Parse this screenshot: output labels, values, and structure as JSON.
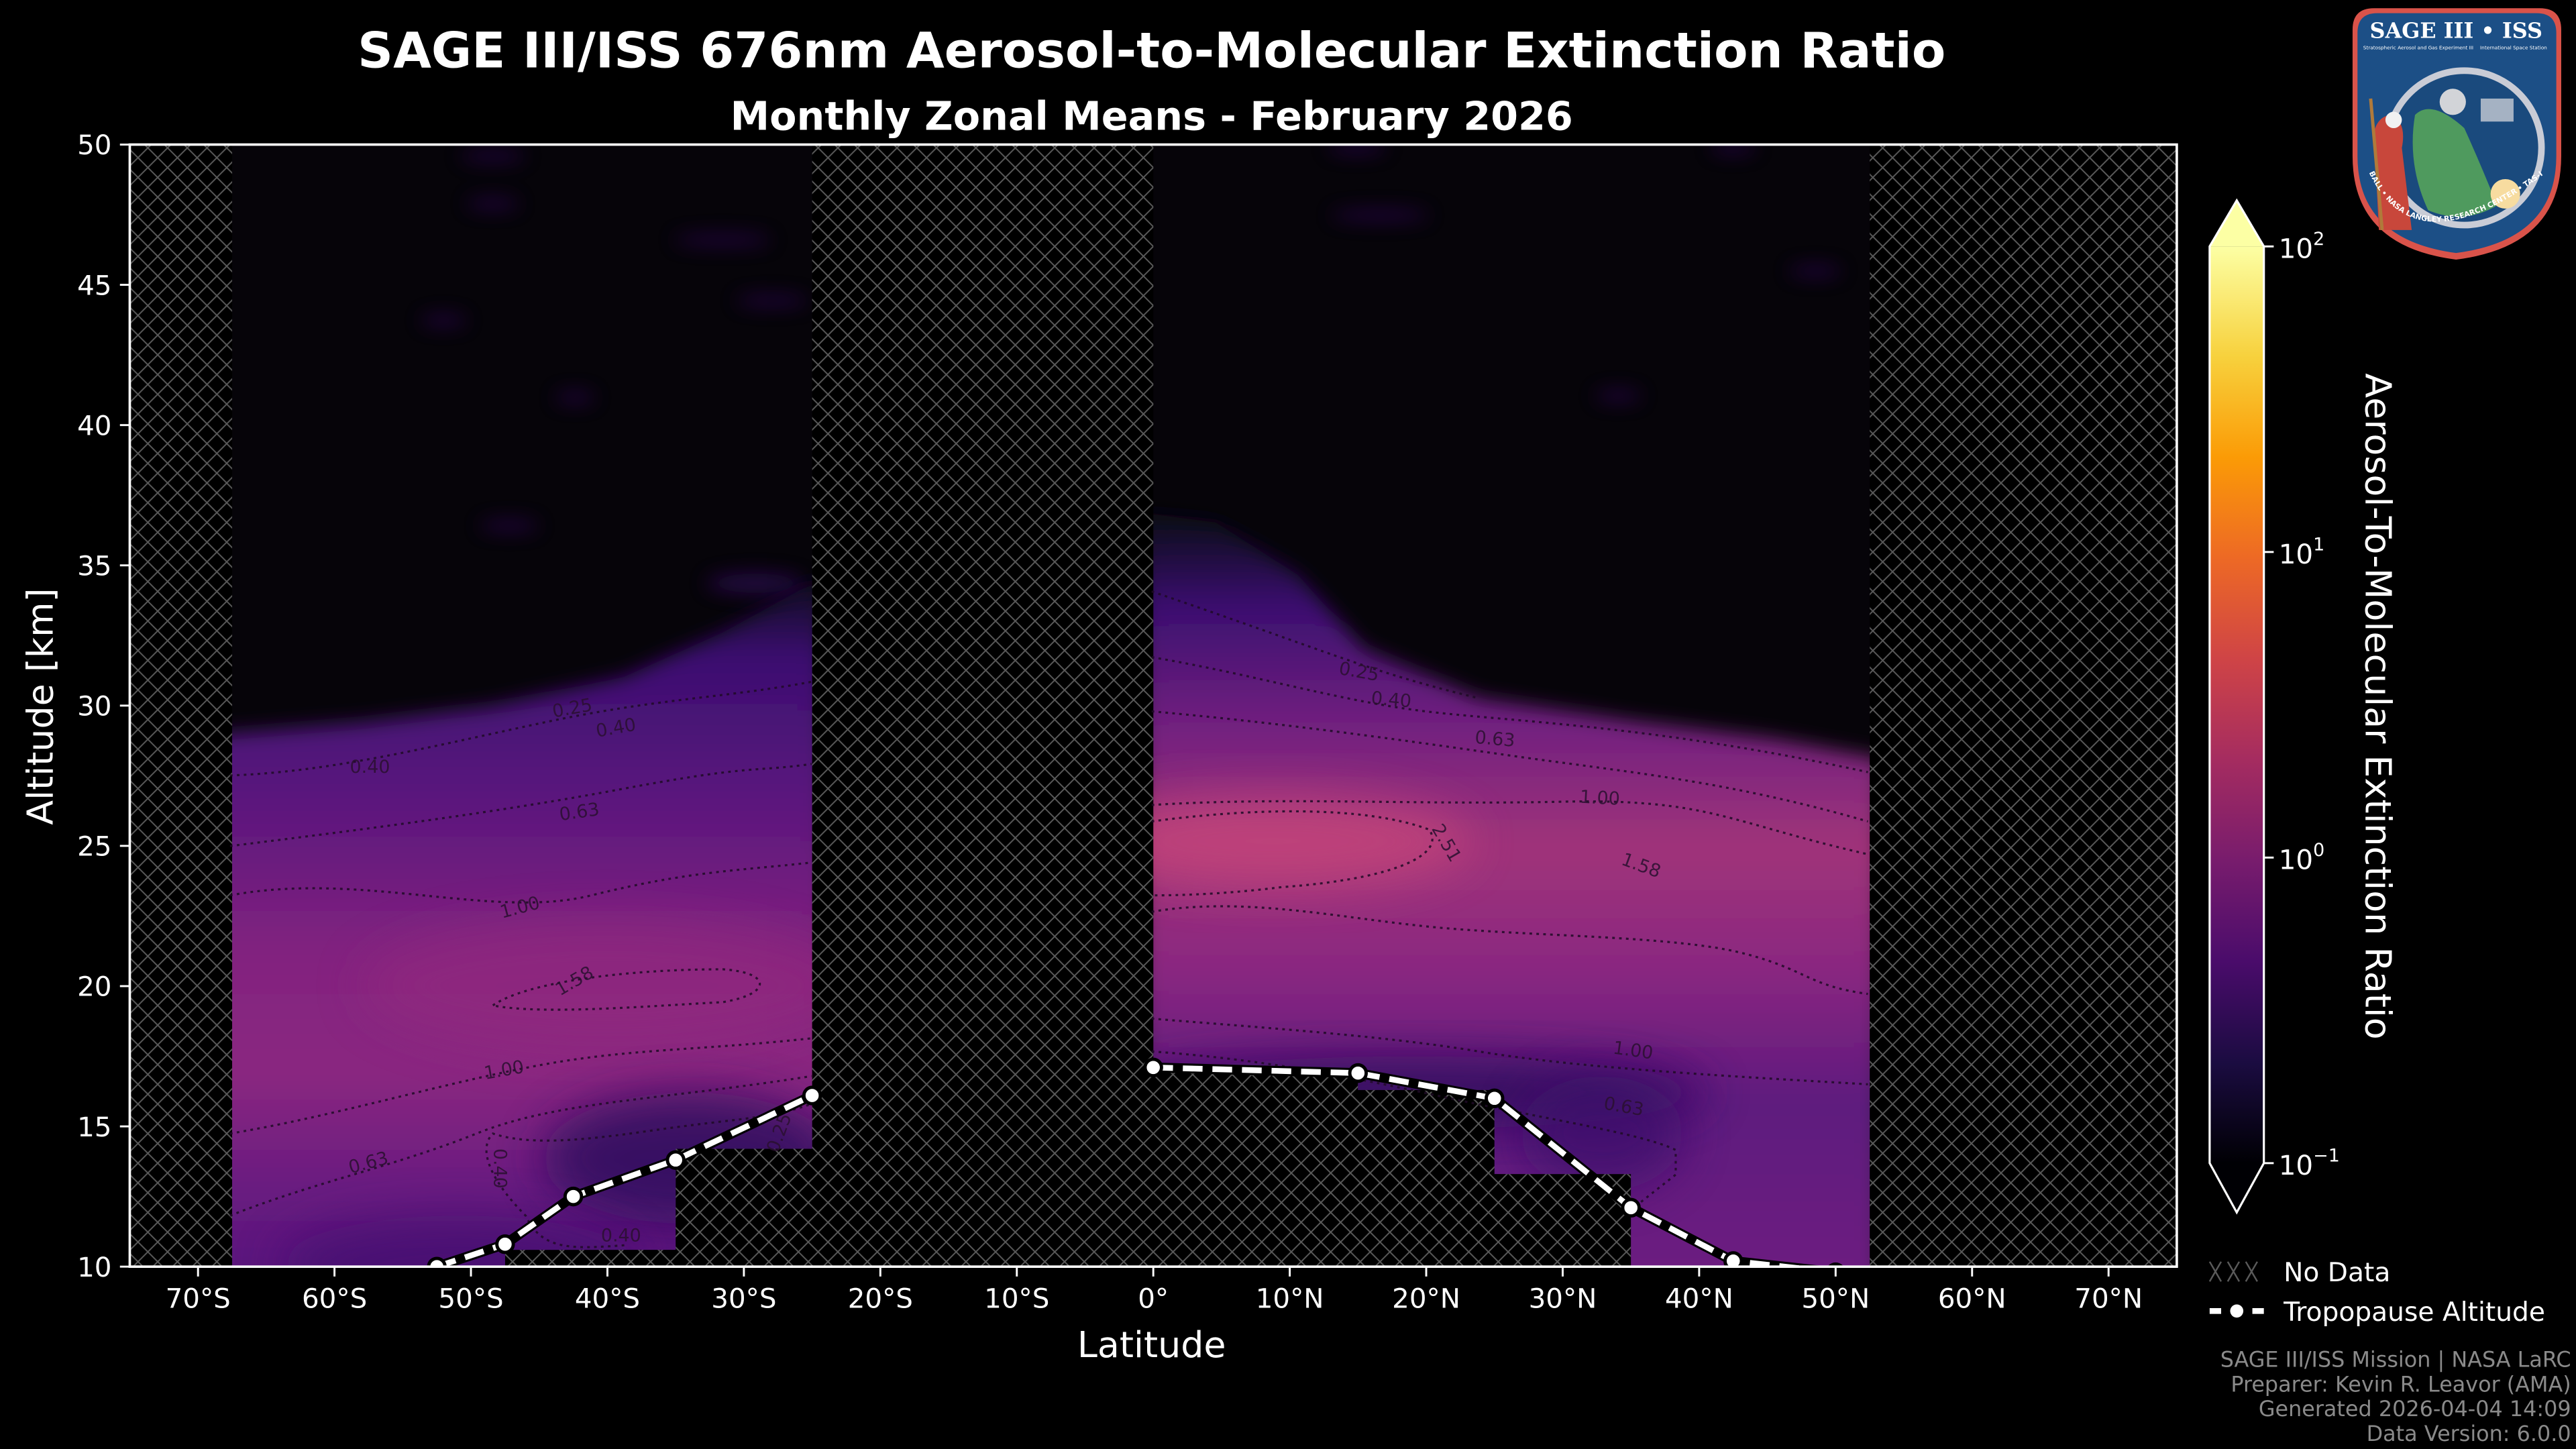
{
  "title": "SAGE III/ISS 676nm Aerosol-to-Molecular Extinction Ratio",
  "subtitle": "Monthly Zonal Means - February 2026",
  "logo": {
    "title": "SAGE III • ISS",
    "subtitle_left": "Stratospheric Aerosol and Gas Experiment III",
    "subtitle_right": "International Space Station",
    "ring_text": "BALL • NASA LANGLEY RESEARCH CENTER • TAS-I • ESA"
  },
  "chart_data": {
    "type": "heatmap",
    "xlabel": "Latitude",
    "ylabel": "Altitude [km]",
    "xlim": [
      -75,
      75
    ],
    "ylim": [
      10,
      50
    ],
    "x_ticks": [
      {
        "value": -70,
        "label": "70°S"
      },
      {
        "value": -60,
        "label": "60°S"
      },
      {
        "value": -50,
        "label": "50°S"
      },
      {
        "value": -40,
        "label": "40°S"
      },
      {
        "value": -30,
        "label": "30°S"
      },
      {
        "value": -20,
        "label": "20°S"
      },
      {
        "value": -10,
        "label": "10°S"
      },
      {
        "value": 0,
        "label": "0°"
      },
      {
        "value": 10,
        "label": "10°N"
      },
      {
        "value": 20,
        "label": "20°N"
      },
      {
        "value": 30,
        "label": "30°N"
      },
      {
        "value": 40,
        "label": "40°N"
      },
      {
        "value": 50,
        "label": "50°N"
      },
      {
        "value": 60,
        "label": "60°N"
      },
      {
        "value": 70,
        "label": "70°N"
      }
    ],
    "y_ticks": [
      {
        "value": 10,
        "label": "10"
      },
      {
        "value": 15,
        "label": "15"
      },
      {
        "value": 20,
        "label": "20"
      },
      {
        "value": 25,
        "label": "25"
      },
      {
        "value": 30,
        "label": "30"
      },
      {
        "value": 35,
        "label": "35"
      },
      {
        "value": 40,
        "label": "40"
      },
      {
        "value": 45,
        "label": "45"
      },
      {
        "value": 50,
        "label": "50"
      }
    ],
    "colorbar": {
      "label": "Aerosol-To-Molecular Extinction Ratio",
      "colormap": "inferno",
      "scale": "log",
      "range": [
        0.1,
        100
      ],
      "extend": "both",
      "ticks": [
        {
          "value": 0.1,
          "base": "10",
          "exp": "−1"
        },
        {
          "value": 1,
          "base": "10",
          "exp": "0"
        },
        {
          "value": 10,
          "base": "10",
          "exp": "1"
        },
        {
          "value": 100,
          "base": "10",
          "exp": "2"
        }
      ]
    },
    "data_coverage": [
      {
        "lat": [
          -67.5,
          -47.5
        ],
        "min_alt": 10
      },
      {
        "lat": [
          -47.5,
          -35
        ],
        "min_alt": 10.6
      },
      {
        "lat": [
          -35,
          -25
        ],
        "min_alt": 14.2
      },
      {
        "lat": [
          0,
          15
        ],
        "min_alt": 17.0
      },
      {
        "lat": [
          15,
          25
        ],
        "min_alt": 16.3
      },
      {
        "lat": [
          25,
          35
        ],
        "min_alt": 13.3
      },
      {
        "lat": [
          35,
          52.5
        ],
        "min_alt": 10
      }
    ],
    "features": {
      "south_max": {
        "lat": -43,
        "alt": 19.5,
        "ratio": 1.7
      },
      "north_max": {
        "lat": 8,
        "alt": 24.5,
        "ratio": 2.8
      },
      "aerosol_layer_top_km": {
        "south": "29-35",
        "north": "28-36"
      }
    },
    "contour_levels": [
      0.25,
      0.4,
      0.63,
      1.0,
      1.58,
      2.51
    ],
    "contour_labels": [
      {
        "text": "0.25",
        "lat": -42.5,
        "alt": 29.7,
        "rot": -10
      },
      {
        "text": "0.40",
        "lat": -39.3,
        "alt": 29.0,
        "rot": -10
      },
      {
        "text": "0.40",
        "lat": -57.4,
        "alt": 27.6,
        "rot": 0
      },
      {
        "text": "0.63",
        "lat": -42.0,
        "alt": 26.0,
        "rot": -8
      },
      {
        "text": "1.00",
        "lat": -46.3,
        "alt": 22.6,
        "rot": -15
      },
      {
        "text": "1.58",
        "lat": -42.2,
        "alt": 20.0,
        "rot": -30
      },
      {
        "text": "1.00",
        "lat": -47.5,
        "alt": 16.8,
        "rot": -10
      },
      {
        "text": "0.63",
        "lat": -57.4,
        "alt": 13.5,
        "rot": -15
      },
      {
        "text": "0.40",
        "lat": -48.3,
        "alt": 13.5,
        "rot": 90
      },
      {
        "text": "0.40",
        "lat": -39.0,
        "alt": 10.9,
        "rot": 0
      },
      {
        "text": "0.25",
        "lat": -27.0,
        "alt": 14.7,
        "rot": -70
      },
      {
        "text": "0.25",
        "lat": 15.0,
        "alt": 31.0,
        "rot": 10
      },
      {
        "text": "0.40",
        "lat": 17.4,
        "alt": 30.0,
        "rot": 5
      },
      {
        "text": "0.63",
        "lat": 25.0,
        "alt": 28.6,
        "rot": 5
      },
      {
        "text": "1.00",
        "lat": 32.7,
        "alt": 26.5,
        "rot": 3
      },
      {
        "text": "2.51",
        "lat": 21.1,
        "alt": 25.0,
        "rot": 60
      },
      {
        "text": "1.58",
        "lat": 35.6,
        "alt": 24.1,
        "rot": 20
      },
      {
        "text": "1.00",
        "lat": 35.1,
        "alt": 17.5,
        "rot": 8
      },
      {
        "text": "0.63",
        "lat": 34.4,
        "alt": 15.5,
        "rot": 10
      }
    ],
    "tropopause": {
      "name": "Tropopause Altitude",
      "segments": [
        [
          {
            "lat": -52.5,
            "alt": 10.0
          },
          {
            "lat": -47.5,
            "alt": 10.8
          },
          {
            "lat": -42.5,
            "alt": 12.5
          },
          {
            "lat": -35,
            "alt": 13.8
          },
          {
            "lat": -25,
            "alt": 16.1
          }
        ],
        [
          {
            "lat": 0,
            "alt": 17.1
          },
          {
            "lat": 15,
            "alt": 16.9
          },
          {
            "lat": 25,
            "alt": 16.0
          },
          {
            "lat": 35,
            "alt": 12.1
          },
          {
            "lat": 42.5,
            "alt": 10.2
          },
          {
            "lat": 50,
            "alt": 9.8
          }
        ]
      ]
    },
    "colors": {
      "no_data_hatch": "#5a5a5a",
      "tropopause": "#ffffff",
      "background": "#000000"
    }
  },
  "legend": [
    {
      "icon": "hatch-icon",
      "label": "No Data"
    },
    {
      "icon": "dashed-line-marker-icon",
      "label": "Tropopause Altitude"
    }
  ],
  "footer": [
    "SAGE III/ISS Mission | NASA LaRC",
    "Preparer: Kevin R. Leavor (AMA)",
    "Generated 2026-04-04 14:09",
    "Data Version: 6.0.0"
  ]
}
